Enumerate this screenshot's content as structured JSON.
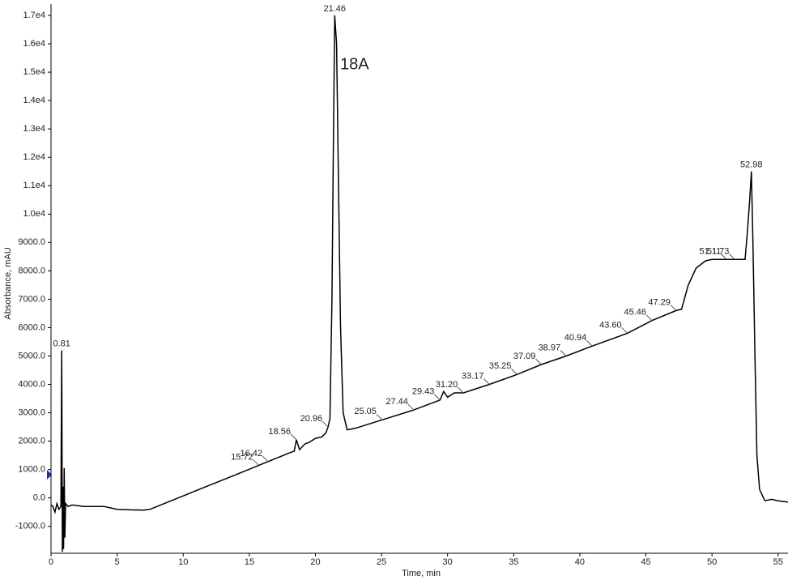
{
  "chart_data": {
    "type": "line",
    "x_label": "Time, min",
    "y_label": "Absorbance, mAU",
    "annotation": "18A",
    "xlim": [
      0,
      55.75
    ],
    "ylim": [
      -1950,
      17400
    ],
    "xticks": [
      0,
      5,
      10,
      15,
      20,
      25,
      30,
      35,
      40,
      45,
      50,
      55
    ],
    "yticks": [
      {
        "value": -1000,
        "label": "-1000.0"
      },
      {
        "value": 0,
        "label": "0.0"
      },
      {
        "value": 1000,
        "label": "1000.0"
      },
      {
        "value": 2000,
        "label": "2000.0"
      },
      {
        "value": 3000,
        "label": "3000.0"
      },
      {
        "value": 4000,
        "label": "4000.0"
      },
      {
        "value": 5000,
        "label": "5000.0"
      },
      {
        "value": 6000,
        "label": "6000.0"
      },
      {
        "value": 7000,
        "label": "7000.0"
      },
      {
        "value": 8000,
        "label": "8000.0"
      },
      {
        "value": 9000,
        "label": "9000.0"
      },
      {
        "value": 10000,
        "label": "1.0e4"
      },
      {
        "value": 11000,
        "label": "1.1e4"
      },
      {
        "value": 12000,
        "label": "1.2e4"
      },
      {
        "value": 13000,
        "label": "1.3e4"
      },
      {
        "value": 14000,
        "label": "1.4e4"
      },
      {
        "value": 15000,
        "label": "1.5e4"
      },
      {
        "value": 16000,
        "label": "1.6e4"
      },
      {
        "value": 17000,
        "label": "1.7e4"
      }
    ],
    "x": [
      0,
      0.15,
      0.3,
      0.45,
      0.6,
      0.75,
      0.81,
      0.86,
      0.9,
      0.95,
      1.0,
      1.05,
      1.1,
      1.3,
      1.6,
      2.5,
      4,
      5,
      6,
      7,
      7.5,
      10,
      12,
      14,
      16,
      18,
      18.4,
      18.56,
      18.8,
      19.2,
      19.5,
      20,
      20.5,
      20.8,
      20.96,
      21.1,
      21.25,
      21.35,
      21.46,
      21.6,
      21.75,
      21.9,
      22.1,
      22.4,
      23,
      25.05,
      27.44,
      29.43,
      29.7,
      30.0,
      30.5,
      31.2,
      33.17,
      35.25,
      37.09,
      38.97,
      40.94,
      43.6,
      45.46,
      47.29,
      47.7,
      48.2,
      48.8,
      49.5,
      50,
      51.11,
      51.73,
      52.5,
      52.7,
      52.85,
      52.98,
      53.1,
      53.25,
      53.4,
      53.6,
      54,
      54.5,
      55,
      55.75
    ],
    "series": [
      {
        "name": "Absorbance",
        "color": "#000000",
        "values": [
          -250,
          -300,
          -500,
          -200,
          -400,
          -300,
          5200,
          -1900,
          400,
          -1800,
          1050,
          -1400,
          -200,
          -300,
          -250,
          -300,
          -300,
          -400,
          -420,
          -430,
          -400,
          70,
          450,
          820,
          1200,
          1580,
          1650,
          2050,
          1700,
          1900,
          1950,
          2100,
          2150,
          2300,
          2500,
          2800,
          7000,
          12000,
          17000,
          16000,
          11000,
          6000,
          3000,
          2400,
          2450,
          2750,
          3100,
          3450,
          3750,
          3550,
          3700,
          3700,
          4000,
          4350,
          4700,
          5000,
          5350,
          5800,
          6250,
          6600,
          6650,
          7500,
          8100,
          8350,
          8400,
          8400,
          8400,
          8400,
          9500,
          10500,
          11500,
          9000,
          5000,
          1500,
          300,
          -100,
          -50,
          -100,
          -150
        ]
      }
    ],
    "peak_labels": [
      {
        "label": "0.81",
        "x": 0.81,
        "y": 5200
      },
      {
        "label": "15.72",
        "x": 15.72,
        "y": 1145
      },
      {
        "label": "16.42",
        "x": 16.42,
        "y": 1277
      },
      {
        "label": "18.56",
        "x": 18.56,
        "y": 2050
      },
      {
        "label": "20.96",
        "x": 20.96,
        "y": 2500
      },
      {
        "label": "21.46",
        "x": 21.46,
        "y": 17000
      },
      {
        "label": "25.05",
        "x": 25.05,
        "y": 2750
      },
      {
        "label": "27.44",
        "x": 27.44,
        "y": 3100
      },
      {
        "label": "29.43",
        "x": 29.43,
        "y": 3450
      },
      {
        "label": "31.20",
        "x": 31.2,
        "y": 3700
      },
      {
        "label": "33.17",
        "x": 33.17,
        "y": 4000
      },
      {
        "label": "35.25",
        "x": 35.25,
        "y": 4350
      },
      {
        "label": "37.09",
        "x": 37.09,
        "y": 4700
      },
      {
        "label": "38.97",
        "x": 38.97,
        "y": 5000
      },
      {
        "label": "40.94",
        "x": 40.94,
        "y": 5350
      },
      {
        "label": "43.60",
        "x": 43.6,
        "y": 5800
      },
      {
        "label": "45.46",
        "x": 45.46,
        "y": 6250
      },
      {
        "label": "47.29",
        "x": 47.29,
        "y": 6600
      },
      {
        "label": "51.11",
        "x": 51.11,
        "y": 8400
      },
      {
        "label": "51.73",
        "x": 51.73,
        "y": 8400
      },
      {
        "label": "52.98",
        "x": 52.98,
        "y": 11500
      }
    ]
  }
}
